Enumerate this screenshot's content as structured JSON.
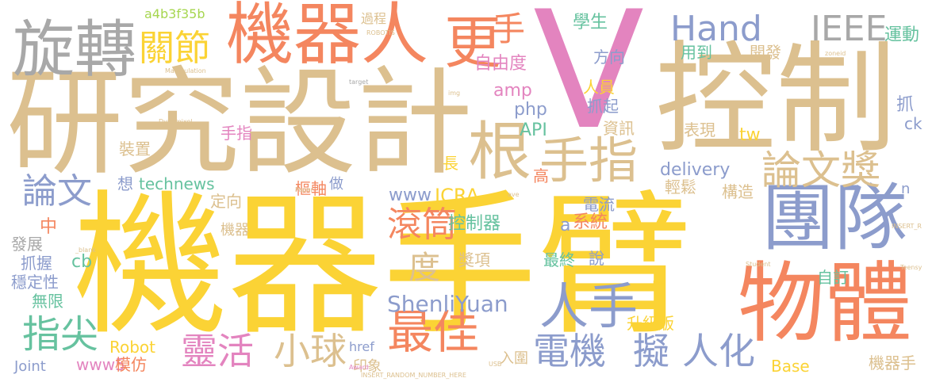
{
  "palette": {
    "tan": "#dcc08f",
    "yellow": "#fbd335",
    "coral": "#f4865f",
    "pink": "#e384bf",
    "blue": "#8c9ccc",
    "green": "#66c29f",
    "grey": "#a8a8a8",
    "lime": "#a6d64f"
  },
  "words": [
    {
      "text": "機器手臂",
      "color": "yellow"
    },
    {
      "text": "研究設計",
      "color": "tan"
    },
    {
      "text": "控制",
      "color": "tan"
    },
    {
      "text": "V",
      "color": "pink"
    },
    {
      "text": "機器人",
      "color": "coral"
    },
    {
      "text": "物體",
      "color": "coral"
    },
    {
      "text": "團隊",
      "color": "blue"
    },
    {
      "text": "旋轉",
      "color": "grey"
    },
    {
      "text": "關節",
      "color": "yellow"
    },
    {
      "text": "更",
      "color": "coral"
    },
    {
      "text": "手",
      "color": "coral"
    },
    {
      "text": "Hand",
      "color": "blue"
    },
    {
      "text": "IEEE",
      "color": "grey"
    },
    {
      "text": "根",
      "color": "tan"
    },
    {
      "text": "手指",
      "color": "tan"
    },
    {
      "text": "論文獎",
      "color": "tan"
    },
    {
      "text": "論文",
      "color": "blue"
    },
    {
      "text": "最佳",
      "color": "coral"
    },
    {
      "text": "人手",
      "color": "blue"
    },
    {
      "text": "滾筒",
      "color": "coral"
    },
    {
      "text": "指尖",
      "color": "green"
    },
    {
      "text": "靈活",
      "color": "pink"
    },
    {
      "text": "小球",
      "color": "tan"
    },
    {
      "text": "電機",
      "color": "blue"
    },
    {
      "text": "擬",
      "color": "blue"
    },
    {
      "text": "人化",
      "color": "blue"
    },
    {
      "text": "度",
      "color": "tan"
    },
    {
      "text": "ShenliYuan",
      "color": "blue"
    },
    {
      "text": "Robot",
      "color": "yellow"
    },
    {
      "text": "delivery",
      "color": "blue"
    },
    {
      "text": "technews",
      "color": "green"
    },
    {
      "text": "ICRA",
      "color": "yellow"
    },
    {
      "text": "www",
      "color": "blue"
    },
    {
      "text": "a4b3f35b",
      "color": "lime"
    },
    {
      "text": "學生",
      "color": "green"
    },
    {
      "text": "運動",
      "color": "green"
    },
    {
      "text": "開發",
      "color": "tan"
    },
    {
      "text": "用到",
      "color": "green"
    },
    {
      "text": "方向",
      "color": "blue"
    },
    {
      "text": "自由度",
      "color": "pink"
    },
    {
      "text": "amp",
      "color": "pink"
    },
    {
      "text": "php",
      "color": "blue"
    },
    {
      "text": "API",
      "color": "green"
    },
    {
      "text": "人員",
      "color": "yellow"
    },
    {
      "text": "抓起",
      "color": "blue"
    },
    {
      "text": "資訊",
      "color": "tan"
    },
    {
      "text": "表現",
      "color": "tan"
    },
    {
      "text": "tw",
      "color": "yellow"
    },
    {
      "text": "抓",
      "color": "blue"
    },
    {
      "text": "ck",
      "color": "blue"
    },
    {
      "text": "手指",
      "color": "pink"
    },
    {
      "text": "裝置",
      "color": "tan"
    },
    {
      "text": "長",
      "color": "yellow"
    },
    {
      "text": "高",
      "color": "coral"
    },
    {
      "text": "輕鬆",
      "color": "tan"
    },
    {
      "text": "構造",
      "color": "tan"
    },
    {
      "text": "想",
      "color": "blue"
    },
    {
      "text": "樞軸",
      "color": "coral"
    },
    {
      "text": "定向",
      "color": "tan"
    },
    {
      "text": "做",
      "color": "blue"
    },
    {
      "text": "電流",
      "color": "blue"
    },
    {
      "text": "控制器",
      "color": "green"
    },
    {
      "text": "a",
      "color": "blue"
    },
    {
      "text": "系統",
      "color": "coral"
    },
    {
      "text": "中",
      "color": "coral"
    },
    {
      "text": "機器",
      "color": "tan"
    },
    {
      "text": "發展",
      "color": "grey"
    },
    {
      "text": "抓握",
      "color": "blue"
    },
    {
      "text": "cb",
      "color": "green"
    },
    {
      "text": "穩定性",
      "color": "blue"
    },
    {
      "text": "無限",
      "color": "green"
    },
    {
      "text": "獎項",
      "color": "tan"
    },
    {
      "text": "最終",
      "color": "green"
    },
    {
      "text": "說",
      "color": "blue"
    },
    {
      "text": "自訂",
      "color": "green"
    },
    {
      "text": "升級版",
      "color": "yellow"
    },
    {
      "text": "www5",
      "color": "pink"
    },
    {
      "text": "模仿",
      "color": "coral"
    },
    {
      "text": "Joint",
      "color": "blue"
    },
    {
      "text": "href",
      "color": "blue"
    },
    {
      "text": "印象",
      "color": "tan"
    },
    {
      "text": "入圍",
      "color": "tan"
    },
    {
      "text": "Base",
      "color": "yellow"
    },
    {
      "text": "機器手",
      "color": "tan"
    },
    {
      "text": "n",
      "color": "blue"
    },
    {
      "text": "過程",
      "color": "tan"
    },
    {
      "text": "ROBOTIS",
      "color": "tan"
    },
    {
      "text": "Manipulation",
      "color": "tan"
    },
    {
      "text": "target",
      "color": "grey"
    },
    {
      "text": "Dynamixel",
      "color": "tan"
    },
    {
      "text": "img",
      "color": "tan"
    },
    {
      "text": "USB",
      "color": "tan"
    },
    {
      "text": "Paper",
      "color": "tan"
    },
    {
      "text": "ave",
      "color": "tan"
    },
    {
      "text": "_blank",
      "color": "tan"
    },
    {
      "text": "INSERT_RANDOM_NUMBER_HERE",
      "color": "tan"
    },
    {
      "text": "Award",
      "color": "pink"
    },
    {
      "text": "DoF",
      "color": "yellow"
    },
    {
      "text": "Student",
      "color": "tan"
    },
    {
      "text": "Teensy",
      "color": "tan"
    },
    {
      "text": "zoneid",
      "color": "tan"
    },
    {
      "text": "INSERT_R",
      "color": "tan"
    }
  ]
}
